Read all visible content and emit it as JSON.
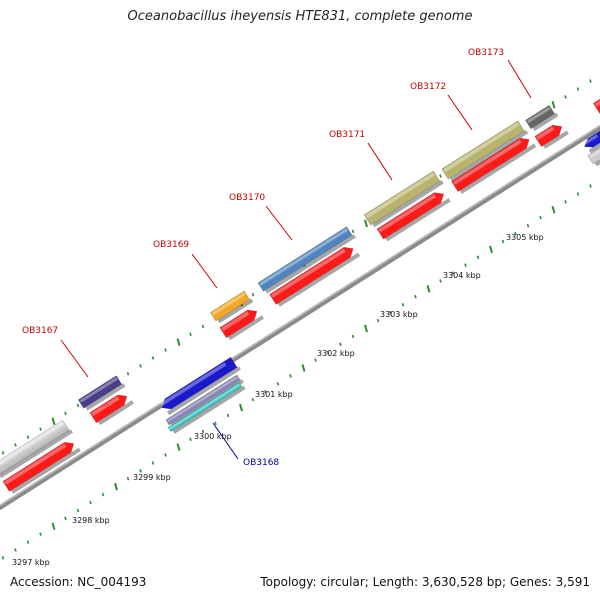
{
  "title": "Oceanobacillus iheyensis HTE831, complete genome",
  "footer": {
    "accession": "Accession: NC_004193",
    "summary": "Topology: circular; Length: 3,630,528 bp; Genes: 3,591"
  },
  "colors": {
    "tick": "#2e8b2e",
    "backbone": "#8c8c8c",
    "label_red": "#cc0000",
    "label_blue": "#000099"
  },
  "kbp_labels": [
    "3297 kbp",
    "3298 kbp",
    "3299 kbp",
    "3300 kbp",
    "3301 kbp",
    "3302 kbp",
    "3303 kbp",
    "3304 kbp",
    "3305 kbp"
  ],
  "genes": [
    {
      "label": "OB3167",
      "color": "#4a3d8c"
    },
    {
      "label": "OB3168",
      "color": "#1a1acc"
    },
    {
      "label": "OB3169",
      "color": "#f5a623"
    },
    {
      "label": "OB3170",
      "color": "#4f86c0"
    },
    {
      "label": "OB3171",
      "color": "#b8b46e"
    },
    {
      "label": "OB3172",
      "color": "#b8b46e"
    },
    {
      "label": "OB3173",
      "color": "#666666"
    }
  ]
}
